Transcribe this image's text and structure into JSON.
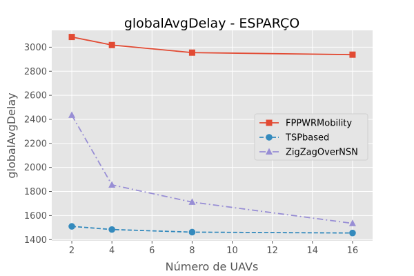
{
  "chart_data": {
    "type": "line",
    "title": "globalAvgDelay - ESPARÇO",
    "xlabel": "Número de UAVs",
    "ylabel": "globalAvgDelay",
    "xlim": [
      1.0,
      17.0
    ],
    "ylim": [
      1390,
      3140
    ],
    "x_ticks": [
      2,
      4,
      6,
      8,
      10,
      12,
      14,
      16
    ],
    "y_ticks": [
      1400,
      1600,
      1800,
      2000,
      2200,
      2400,
      2600,
      2800,
      3000
    ],
    "grid": true,
    "legend_position": "center-right",
    "series": [
      {
        "name": "FPPWRMobility",
        "color": "#E24A33",
        "marker": "square",
        "dash": "solid",
        "x": [
          2,
          4,
          8,
          16
        ],
        "values": [
          3085,
          3018,
          2955,
          2938
        ]
      },
      {
        "name": "TSPbased",
        "color": "#348ABD",
        "marker": "circle",
        "dash": "dashed",
        "x": [
          2,
          4,
          8,
          16
        ],
        "values": [
          1510,
          1484,
          1462,
          1455
        ]
      },
      {
        "name": "ZigZagOverNSN",
        "color": "#988ED5",
        "marker": "triangle",
        "dash": "dashdot",
        "x": [
          2,
          4,
          8,
          16
        ],
        "values": [
          2435,
          1855,
          1712,
          1535
        ]
      }
    ]
  }
}
